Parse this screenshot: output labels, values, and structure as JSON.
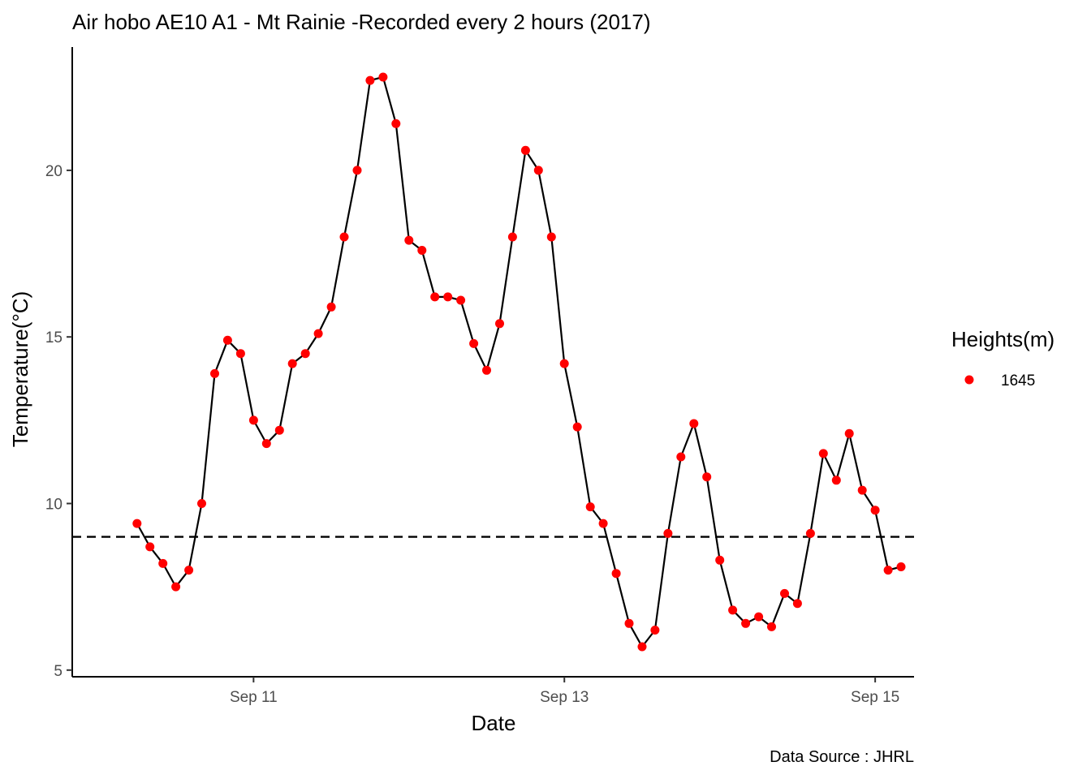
{
  "chart_data": {
    "type": "line",
    "title": "Air hobo AE10 A1 -  Mt Rainie -Recorded every 2 hours (2017)",
    "xlabel": "Date",
    "ylabel": "Temperature(°C)",
    "caption": "Data Source : JHRL",
    "x_start": "2017-09-10 06:00",
    "x_step_hours": 2,
    "xlim": [
      "2017-09-09 20:00",
      "2017-09-15 06:00"
    ],
    "ylim": [
      4.8,
      23.7
    ],
    "x_ticks": [
      {
        "date": "2017-09-11 00:00",
        "label": "Sep 11"
      },
      {
        "date": "2017-09-13 00:00",
        "label": "Sep 13"
      },
      {
        "date": "2017-09-15 00:00",
        "label": "Sep 15"
      }
    ],
    "y_ticks": [
      5,
      10,
      15,
      20
    ],
    "reference_line": {
      "y": 9,
      "style": "dashed",
      "color": "#000000"
    },
    "series": [
      {
        "name": "1645",
        "point_color": "#ff0000",
        "line_color": "#000000",
        "values": [
          9.4,
          8.7,
          8.2,
          7.5,
          8.0,
          10.0,
          13.9,
          14.9,
          14.5,
          12.5,
          11.8,
          12.2,
          14.2,
          14.5,
          15.1,
          15.9,
          18.0,
          20.0,
          22.7,
          22.8,
          21.4,
          17.9,
          17.6,
          16.2,
          16.2,
          16.1,
          14.8,
          14.0,
          15.4,
          18.0,
          20.6,
          20.0,
          18.0,
          14.2,
          12.3,
          9.9,
          9.4,
          7.9,
          6.4,
          5.7,
          6.2,
          9.1,
          11.4,
          12.4,
          10.8,
          8.3,
          6.8,
          6.4,
          6.6,
          6.3,
          7.3,
          7.0,
          9.1,
          11.5,
          10.7,
          12.1,
          10.4,
          9.8,
          8.0,
          8.1
        ]
      }
    ],
    "legend": {
      "title": "Heights(m)",
      "position": "right"
    },
    "grid": false
  }
}
